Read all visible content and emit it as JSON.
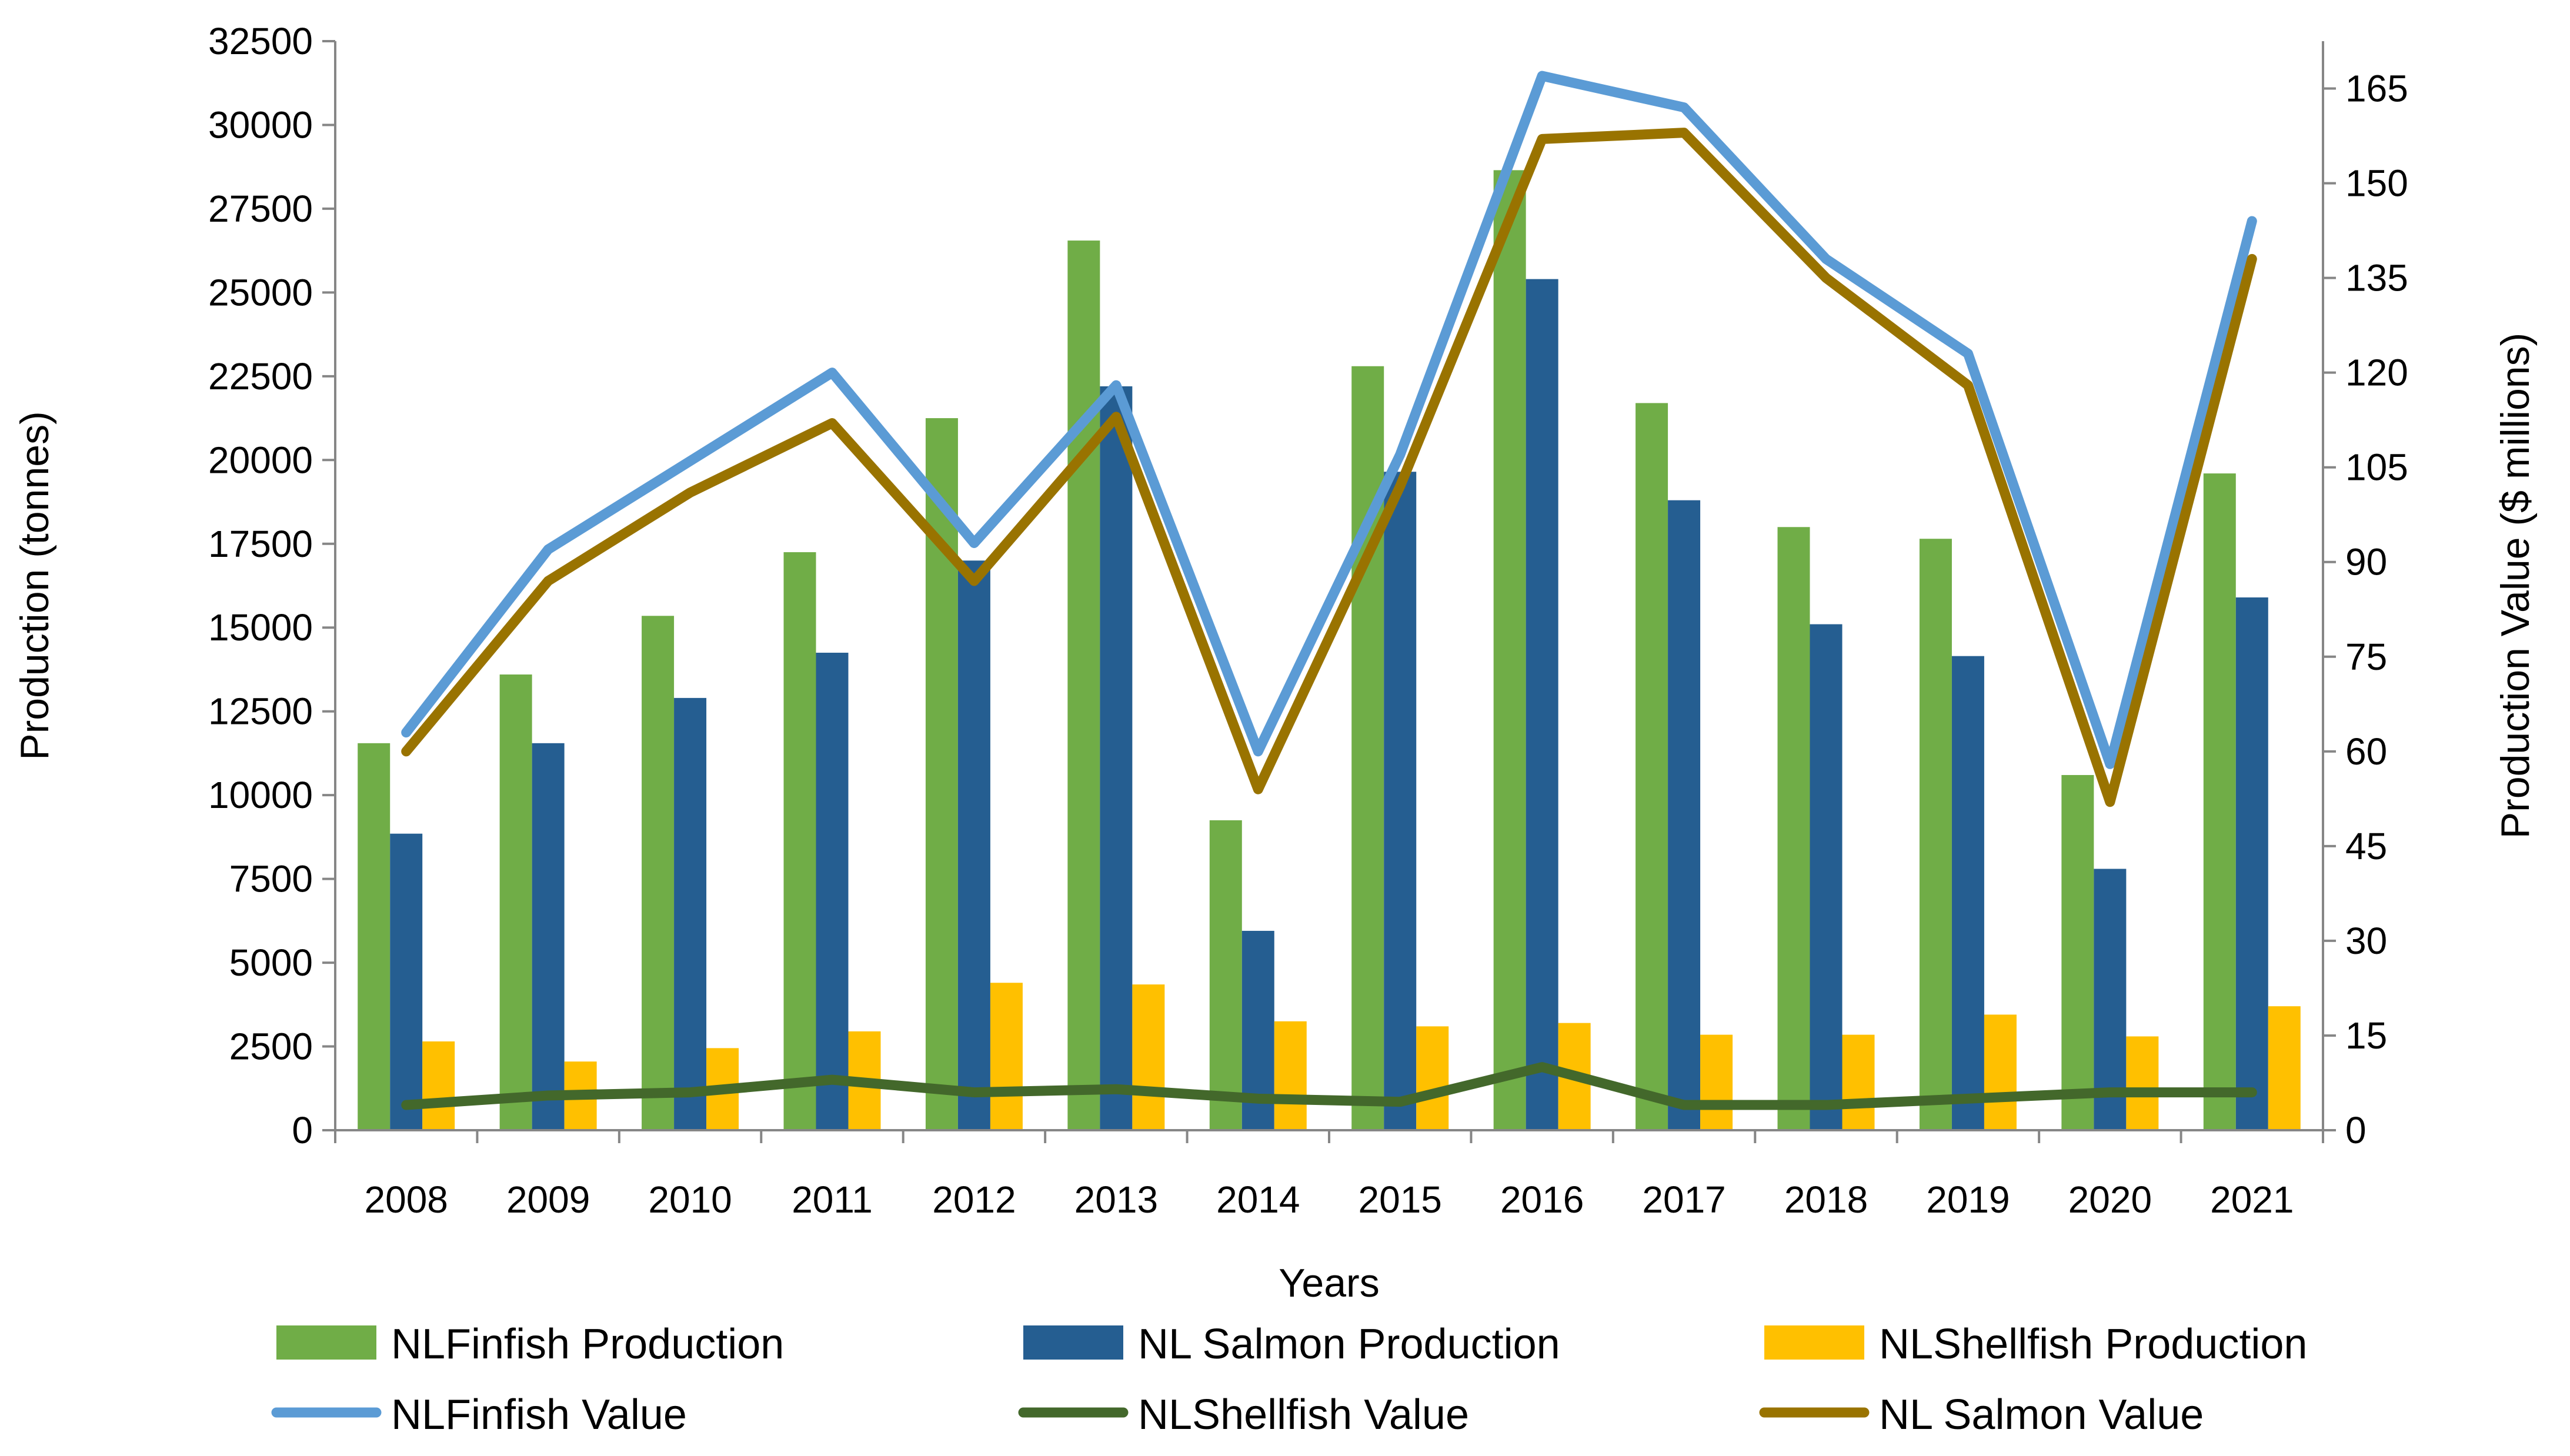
{
  "chart_data": {
    "type": "bar",
    "xlabel": "Years",
    "ylabel": "Production (tonnes)",
    "y2label": "Production Value ($ millions)",
    "categories": [
      "2008",
      "2009",
      "2010",
      "2011",
      "2012",
      "2013",
      "2014",
      "2015",
      "2016",
      "2017",
      "2018",
      "2019",
      "2020",
      "2021"
    ],
    "ylim": [
      0,
      32500
    ],
    "y2lim": [
      0,
      172.5
    ],
    "y_ticks": [
      "0",
      "2500",
      "5000",
      "7500",
      "10000",
      "12500",
      "15000",
      "17500",
      "20000",
      "22500",
      "25000",
      "27500",
      "30000",
      "32500"
    ],
    "y2_ticks": [
      "0",
      "15",
      "30",
      "45",
      "60",
      "75",
      "90",
      "105",
      "120",
      "135",
      "150",
      "165"
    ],
    "grid": false,
    "legend_position": "bottom",
    "bar_series": [
      {
        "name": "NLFinfish Production",
        "color": "#70ad47",
        "values": [
          11550,
          13600,
          15350,
          17250,
          21250,
          26550,
          9250,
          22800,
          28650,
          21700,
          18000,
          17650,
          10600,
          19600
        ]
      },
      {
        "name": "NL Salmon  Production",
        "color": "#255e91",
        "values": [
          8850,
          11550,
          12900,
          14250,
          17000,
          22200,
          5950,
          19650,
          25400,
          18800,
          15100,
          14150,
          7800,
          15900
        ]
      },
      {
        "name": "NLShellfish Production",
        "color": "#ffc000",
        "values": [
          2650,
          2050,
          2450,
          2950,
          4400,
          4350,
          3250,
          3100,
          3200,
          2850,
          2850,
          3450,
          2800,
          3700
        ]
      }
    ],
    "line_series": [
      {
        "name": "NLFinfish Value",
        "color": "#5b9bd5",
        "axis": "right",
        "values": [
          63,
          92,
          106,
          120,
          93,
          118,
          60,
          107,
          167,
          162,
          138,
          123,
          58,
          144
        ]
      },
      {
        "name": "NLShellfish Value",
        "color": "#43682b",
        "axis": "right",
        "values": [
          4,
          5.5,
          6,
          8,
          6,
          6.5,
          5,
          4.5,
          10,
          4,
          4,
          5,
          6,
          6
        ]
      },
      {
        "name": "NL Salmon Value",
        "color": "#997300",
        "axis": "right",
        "values": [
          60,
          87,
          101,
          112,
          87,
          113,
          54,
          102,
          157,
          158,
          135,
          118,
          52,
          138
        ]
      }
    ],
    "legend_order": [
      "NLFinfish Production",
      "NL Salmon  Production",
      "NLShellfish Production",
      "NLFinfish Value",
      "NLShellfish Value",
      "NL Salmon Value"
    ]
  }
}
